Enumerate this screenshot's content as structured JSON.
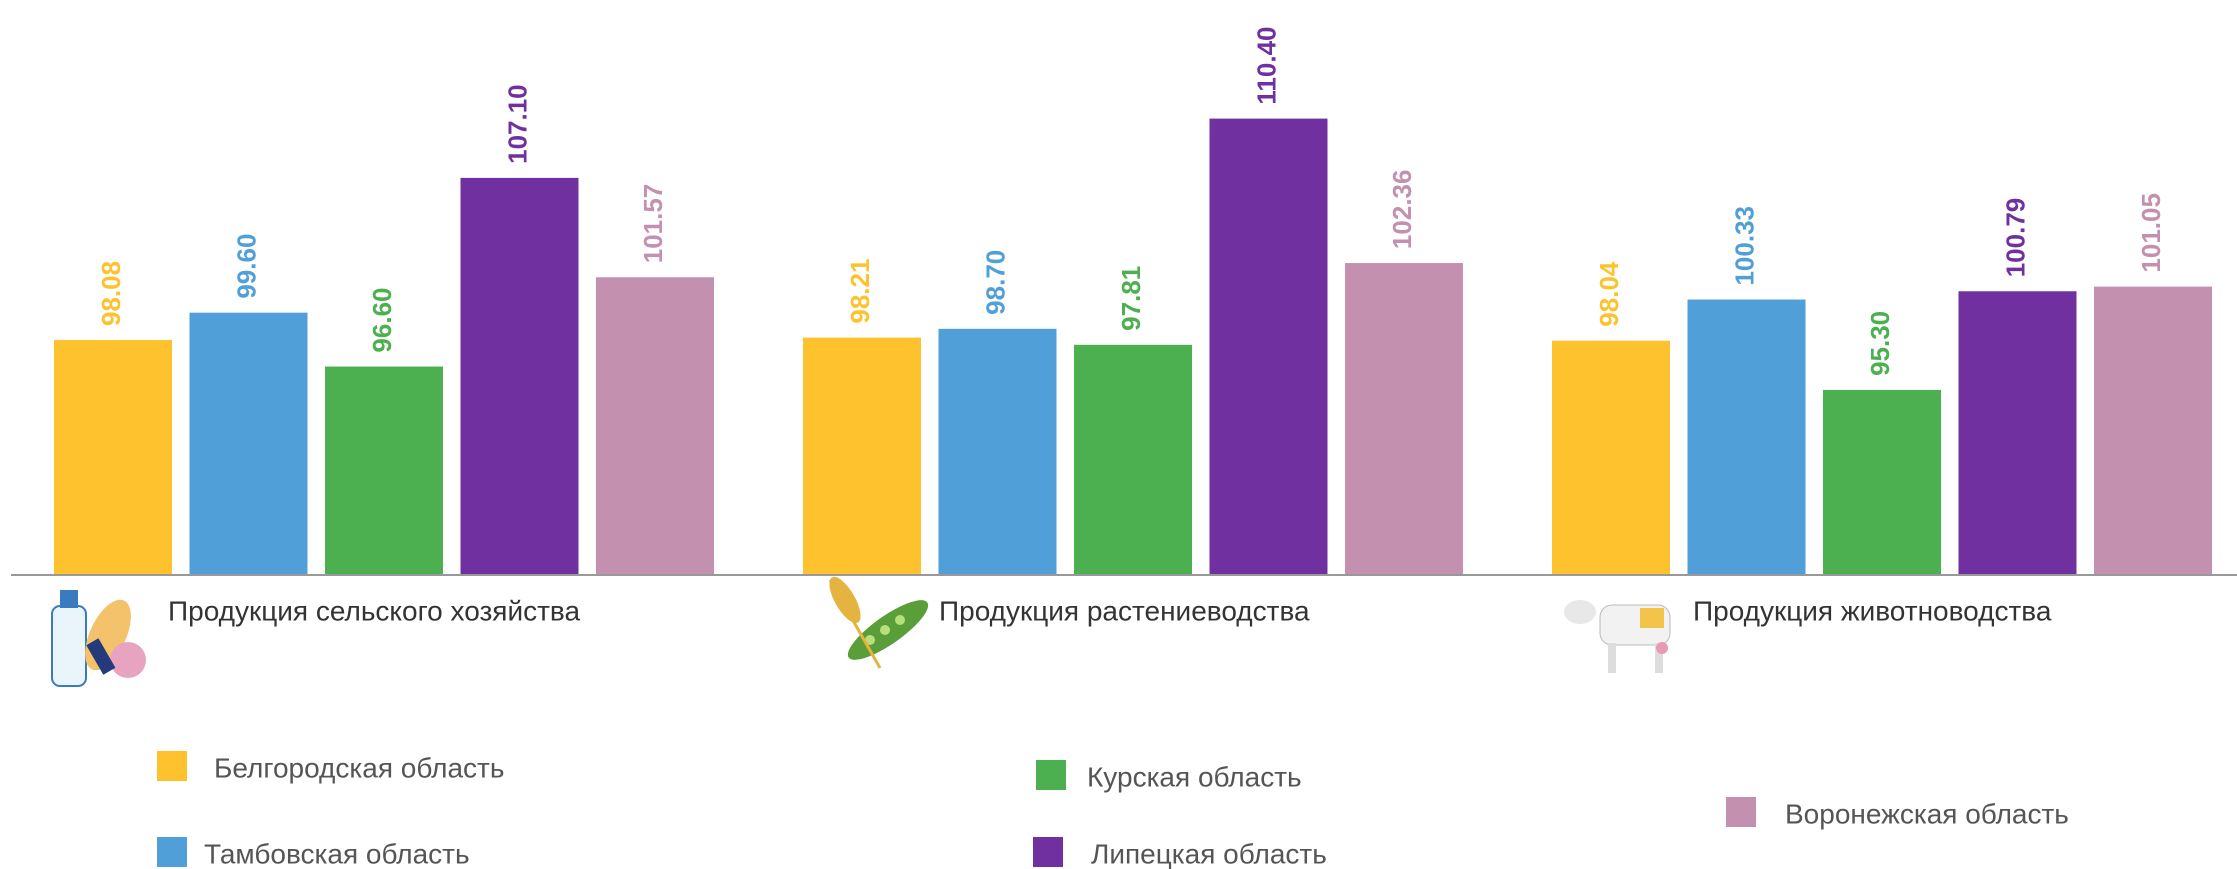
{
  "chart_data": {
    "type": "bar",
    "categories": [
      "Продукция сельского хозяйства",
      "Продукция растениеводства",
      "Продукция животноводства"
    ],
    "series": [
      {
        "name": "Белгородская область",
        "color": "#fec22e",
        "values": [
          98.08,
          98.21,
          98.04
        ],
        "value_labels": [
          "98.08",
          "98.21",
          "98.04"
        ]
      },
      {
        "name": "Тамбовская область",
        "color": "#519fd8",
        "values": [
          99.6,
          98.7,
          100.33
        ],
        "value_labels": [
          "99.60",
          "98.70",
          "100.33"
        ]
      },
      {
        "name": "Курская область",
        "color": "#4caf50",
        "values": [
          96.6,
          97.81,
          95.3
        ],
        "value_labels": [
          "96.60",
          "97.81",
          "95.30"
        ]
      },
      {
        "name": "Липецкая область",
        "color": "#7030a0",
        "values": [
          107.1,
          110.4,
          100.79
        ],
        "value_labels": [
          "107.10",
          "110.40",
          "100.79"
        ]
      },
      {
        "name": "Воронежская область",
        "color": "#c490b0",
        "values": [
          101.57,
          102.36,
          101.05
        ],
        "value_labels": [
          "101.57",
          "102.36",
          "101.05"
        ]
      }
    ],
    "ylim": [
      85,
      117
    ]
  }
}
